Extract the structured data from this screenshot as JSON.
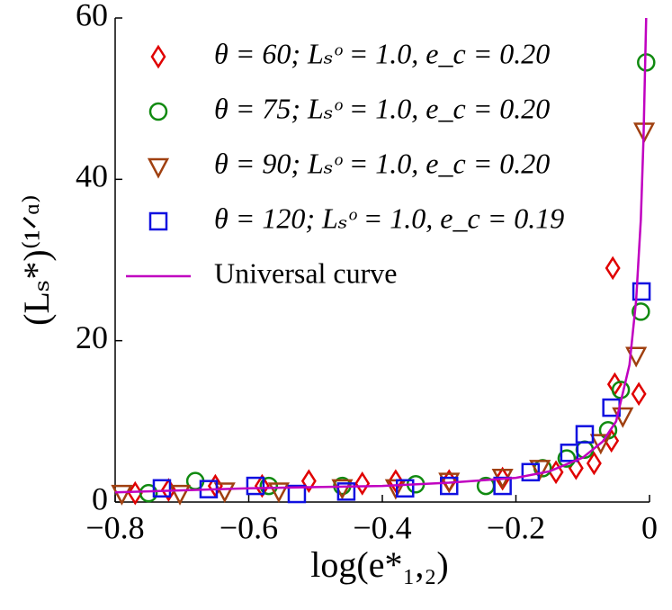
{
  "chart_data": {
    "type": "scatter",
    "x_label": "log(e*₁,₂)",
    "y_label": "(Lₛ*)⁽¹ᐟᵅ⁾",
    "xlim": [
      -0.8,
      0
    ],
    "ylim": [
      0,
      60
    ],
    "xticks": [
      {
        "value": -0.8,
        "label": "−0.8"
      },
      {
        "value": -0.6,
        "label": "−0.6"
      },
      {
        "value": -0.4,
        "label": "−0.4"
      },
      {
        "value": -0.2,
        "label": "−0.2"
      },
      0
    ],
    "yticks": [
      0,
      20,
      40,
      60
    ],
    "legend": "upper left",
    "series": [
      {
        "name": "θ = 60; Lₛᵒ = 1.0, e_c = 0.20",
        "color": "#e00000",
        "marker": "diamond",
        "x": [
          -0.055,
          -0.052,
          -0.016,
          -0.057,
          -0.083,
          -0.11,
          -0.14,
          -0.22,
          -0.3,
          -0.38,
          -0.43,
          -0.51,
          -0.58,
          -0.65,
          -0.72,
          -0.77
        ],
        "values": [
          29,
          14.6,
          13.4,
          7.6,
          4.8,
          4.2,
          3.7,
          2.9,
          2.6,
          2.6,
          2.3,
          2.6,
          2.0,
          2.0,
          1.5,
          1.1
        ]
      },
      {
        "name": "θ = 75; Lₛᵒ = 1.0, e_c = 0.20",
        "color": "#108a10",
        "marker": "circle",
        "x": [
          -0.005,
          -0.013,
          -0.043,
          -0.062,
          -0.097,
          -0.124,
          -0.16,
          -0.245,
          -0.35,
          -0.46,
          -0.57,
          -0.68,
          -0.75
        ],
        "values": [
          54.5,
          23.6,
          13.9,
          8.9,
          6.5,
          5.4,
          4.2,
          2.0,
          2.2,
          2.0,
          2.0,
          2.6,
          1.1
        ]
      },
      {
        "name": "θ = 90; Lₛᵒ = 1.0, e_c = 0.20",
        "color": "#a04010",
        "marker": "triangle",
        "x": [
          -0.008,
          -0.02,
          -0.04,
          -0.073,
          -0.164,
          -0.22,
          -0.3,
          -0.38,
          -0.46,
          -0.555,
          -0.636,
          -0.703,
          -0.79
        ],
        "values": [
          46,
          18.2,
          10.7,
          7.4,
          4.2,
          3.1,
          2.6,
          1.8,
          1.8,
          1.4,
          1.4,
          1.1,
          1.1
        ]
      },
      {
        "name": "θ = 120; Lₛᵒ = 1.0, e_c = 0.19",
        "color": "#1010e0",
        "marker": "square",
        "x": [
          -0.012,
          -0.057,
          -0.097,
          -0.12,
          -0.178,
          -0.22,
          -0.3,
          -0.366,
          -0.454,
          -0.528,
          -0.59,
          -0.66,
          -0.73
        ],
        "values": [
          26.1,
          11.7,
          8.4,
          6.1,
          3.7,
          2.0,
          2.0,
          1.7,
          1.3,
          1.0,
          2.0,
          1.6,
          1.7
        ]
      },
      {
        "name": "Universal curve",
        "color": "#c000c0",
        "marker": "line",
        "x": [
          -0.8,
          -0.7,
          -0.6,
          -0.5,
          -0.4,
          -0.3,
          -0.2,
          -0.15,
          -0.1,
          -0.07,
          -0.05,
          -0.03,
          -0.02,
          -0.013,
          -0.009,
          -0.005
        ],
        "values": [
          1.2,
          1.45,
          1.7,
          1.85,
          2.0,
          2.4,
          3.0,
          3.8,
          5.5,
          7.5,
          10,
          17,
          25,
          35,
          45,
          60
        ]
      }
    ]
  }
}
